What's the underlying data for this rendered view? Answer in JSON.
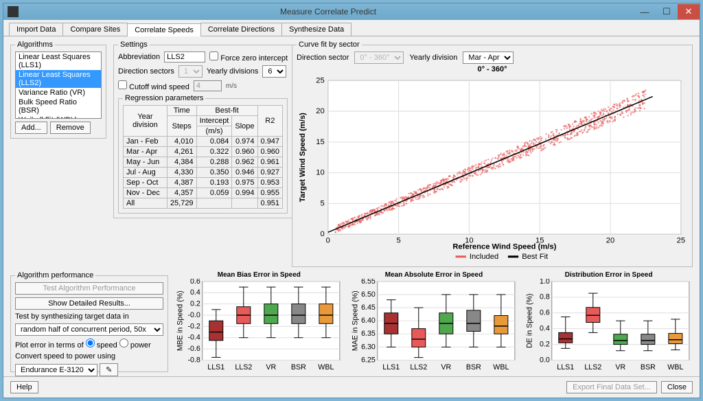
{
  "window": {
    "title": "Measure Correlate Predict"
  },
  "tabs": [
    "Import Data",
    "Compare Sites",
    "Correlate Speeds",
    "Correlate Directions",
    "Synthesize Data"
  ],
  "active_tab": 2,
  "algos": {
    "label": "Algorithms",
    "items": [
      "Linear Least Squares (LLS1)",
      "Linear Least Squares (LLS2)",
      "Variance Ratio (VR)",
      "Bulk Speed Ratio (BSR)",
      "Weibull Fit (WBL)"
    ],
    "selected": 1,
    "add": "Add...",
    "remove": "Remove"
  },
  "settings": {
    "label": "Settings",
    "abbrev_label": "Abbreviation",
    "abbrev": "LLS2",
    "force_zero": "Force zero intercept",
    "dir_sectors_label": "Direction sectors",
    "dir_sectors": "1",
    "year_div_label": "Yearly divisions",
    "year_div": "6",
    "cutoff": "Cutoff wind speed",
    "cutoff_val": "4",
    "ms": "m/s",
    "regparams": "Regression parameters",
    "headers": {
      "year": "Year division",
      "time": "Time",
      "steps": "Steps",
      "bestfit": "Best-fit",
      "intercept": "Intercept",
      "ms": "(m/s)",
      "slope": "Slope",
      "r2": "R2"
    },
    "rows": [
      {
        "yd": "Jan - Feb",
        "steps": "4,010",
        "int": "0.084",
        "slope": "0.974",
        "r2": "0.947"
      },
      {
        "yd": "Mar - Apr",
        "steps": "4,261",
        "int": "0.322",
        "slope": "0.960",
        "r2": "0.960"
      },
      {
        "yd": "May - Jun",
        "steps": "4,384",
        "int": "0.288",
        "slope": "0.962",
        "r2": "0.961"
      },
      {
        "yd": "Jul - Aug",
        "steps": "4,330",
        "int": "0.350",
        "slope": "0.946",
        "r2": "0.927"
      },
      {
        "yd": "Sep - Oct",
        "steps": "4,387",
        "int": "0.193",
        "slope": "0.975",
        "r2": "0.953"
      },
      {
        "yd": "Nov - Dec",
        "steps": "4,357",
        "int": "0.059",
        "slope": "0.994",
        "r2": "0.955"
      },
      {
        "yd": "All",
        "steps": "25,729",
        "int": "",
        "slope": "",
        "r2": "0.951"
      }
    ]
  },
  "curvefit": {
    "label": "Curve fit by sector",
    "dir_label": "Direction sector",
    "dir_val": "0° - 360°",
    "yearly_label": "Yearly division",
    "yearly_val": "Mar - Apr",
    "title": "0° - 360°",
    "xlabel": "Reference Wind Speed (m/s)",
    "ylabel": "Target Wind Speed (m/s)",
    "xlim": [
      0,
      25
    ],
    "ylim": [
      0,
      25
    ],
    "tick_step": 5,
    "point_color": "#e85a5a",
    "line_color": "#000000",
    "bg": "#ffffff",
    "grid": "#dddddd",
    "legend": {
      "included": "Included",
      "bestfit": "Best Fit"
    },
    "fit_slope": 0.96,
    "fit_intercept": 0.32
  },
  "perf": {
    "label": "Algorithm performance",
    "test_btn": "Test Algorithm Performance",
    "detail_btn": "Show Detailed Results...",
    "test_by": "Test by synthesizing target data in",
    "test_sel": "random half of concurrent period, 50x",
    "plot_err": "Plot error in terms of",
    "speed": "speed",
    "power": "power",
    "convert": "Convert speed to power using",
    "turbine": "Endurance E-3120"
  },
  "boxplots": {
    "categories": [
      "LLS1",
      "LLS2",
      "VR",
      "BSR",
      "WBL"
    ],
    "colors": [
      "#a83232",
      "#e85a5a",
      "#4fa84f",
      "#888888",
      "#e89a3a"
    ],
    "charts": [
      {
        "title": "Mean Bias Error in Speed",
        "ylabel": "MBE in Speed (%)",
        "ylim": [
          -0.8,
          0.6
        ],
        "ytick": 0.2,
        "data": [
          {
            "min": -0.75,
            "q1": -0.45,
            "med": -0.3,
            "q3": -0.1,
            "max": 0.1
          },
          {
            "min": -0.4,
            "q1": -0.15,
            "med": 0.0,
            "q3": 0.15,
            "max": 0.5
          },
          {
            "min": -0.4,
            "q1": -0.15,
            "med": 0.0,
            "q3": 0.2,
            "max": 0.5
          },
          {
            "min": -0.4,
            "q1": -0.15,
            "med": 0.0,
            "q3": 0.2,
            "max": 0.5
          },
          {
            "min": -0.4,
            "q1": -0.15,
            "med": 0.0,
            "q3": 0.2,
            "max": 0.5
          }
        ]
      },
      {
        "title": "Mean Absolute Error in Speed",
        "ylabel": "MAE in Speed (%)",
        "ylim": [
          6.25,
          6.55
        ],
        "ytick": 0.05,
        "data": [
          {
            "min": 6.3,
            "q1": 6.35,
            "med": 6.39,
            "q3": 6.43,
            "max": 6.48
          },
          {
            "min": 6.26,
            "q1": 6.3,
            "med": 6.33,
            "q3": 6.37,
            "max": 6.45
          },
          {
            "min": 6.3,
            "q1": 6.35,
            "med": 6.39,
            "q3": 6.43,
            "max": 6.5
          },
          {
            "min": 6.3,
            "q1": 6.36,
            "med": 6.39,
            "q3": 6.44,
            "max": 6.5
          },
          {
            "min": 6.3,
            "q1": 6.35,
            "med": 6.38,
            "q3": 6.42,
            "max": 6.5
          }
        ]
      },
      {
        "title": "Distribution Error in Speed",
        "ylabel": "DE in Speed (%)",
        "ylim": [
          0.0,
          1.0
        ],
        "ytick": 0.2,
        "data": [
          {
            "min": 0.15,
            "q1": 0.22,
            "med": 0.27,
            "q3": 0.35,
            "max": 0.55
          },
          {
            "min": 0.35,
            "q1": 0.48,
            "med": 0.57,
            "q3": 0.67,
            "max": 0.85
          },
          {
            "min": 0.12,
            "q1": 0.2,
            "med": 0.25,
            "q3": 0.33,
            "max": 0.5
          },
          {
            "min": 0.12,
            "q1": 0.2,
            "med": 0.25,
            "q3": 0.33,
            "max": 0.5
          },
          {
            "min": 0.13,
            "q1": 0.21,
            "med": 0.26,
            "q3": 0.34,
            "max": 0.52
          }
        ]
      }
    ]
  },
  "footer": {
    "help": "Help",
    "export": "Export Final Data Set...",
    "close": "Close"
  }
}
